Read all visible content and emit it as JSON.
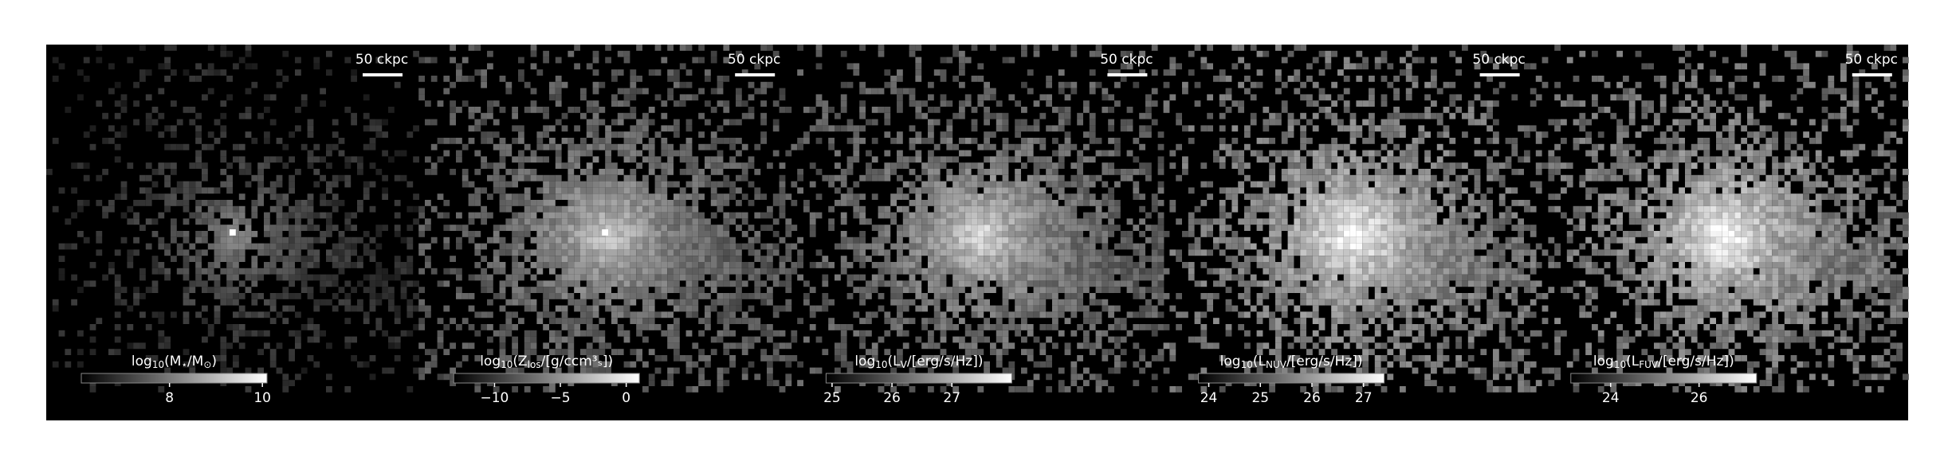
{
  "panels": [
    {
      "scale_bar": "50 ckpc",
      "colorbar": {
        "label": [
          "log",
          "10",
          "(M",
          "⋆",
          "/M",
          "⊙",
          ")"
        ],
        "lim": [
          6.1,
          10.1
        ],
        "ticks": [
          8,
          10
        ]
      }
    },
    {
      "scale_bar": "50 ckpc",
      "colorbar": {
        "label": [
          "log",
          "10",
          "(Z",
          "los",
          "/[g/ccm³ₛ])"
        ],
        "lim": [
          -13.1,
          1.0
        ],
        "ticks": [
          {
            "value": -10,
            "label": "−10"
          },
          {
            "value": -5,
            "label": "−5"
          },
          0
        ]
      }
    },
    {
      "scale_bar": "50 ckpc",
      "colorbar": {
        "label": [
          "log",
          "10",
          "(L",
          "V",
          "/[erg/s/Hz])"
        ],
        "lim": [
          24.9,
          28.0
        ],
        "ticks": [
          25,
          26,
          27
        ]
      }
    },
    {
      "scale_bar": "50 ckpc",
      "colorbar": {
        "label": [
          "log",
          "10",
          "(L",
          "NUV",
          "/[erg/s/Hz])"
        ],
        "lim": [
          23.8,
          27.4
        ],
        "ticks": [
          24,
          25,
          26,
          27
        ]
      }
    },
    {
      "scale_bar": "50 ckpc",
      "colorbar": {
        "label": [
          "log",
          "10",
          "(L",
          "FUV",
          "/[erg/s/Hz])"
        ],
        "lim": [
          23.1,
          27.3
        ],
        "ticks": [
          24,
          26
        ]
      }
    }
  ]
}
